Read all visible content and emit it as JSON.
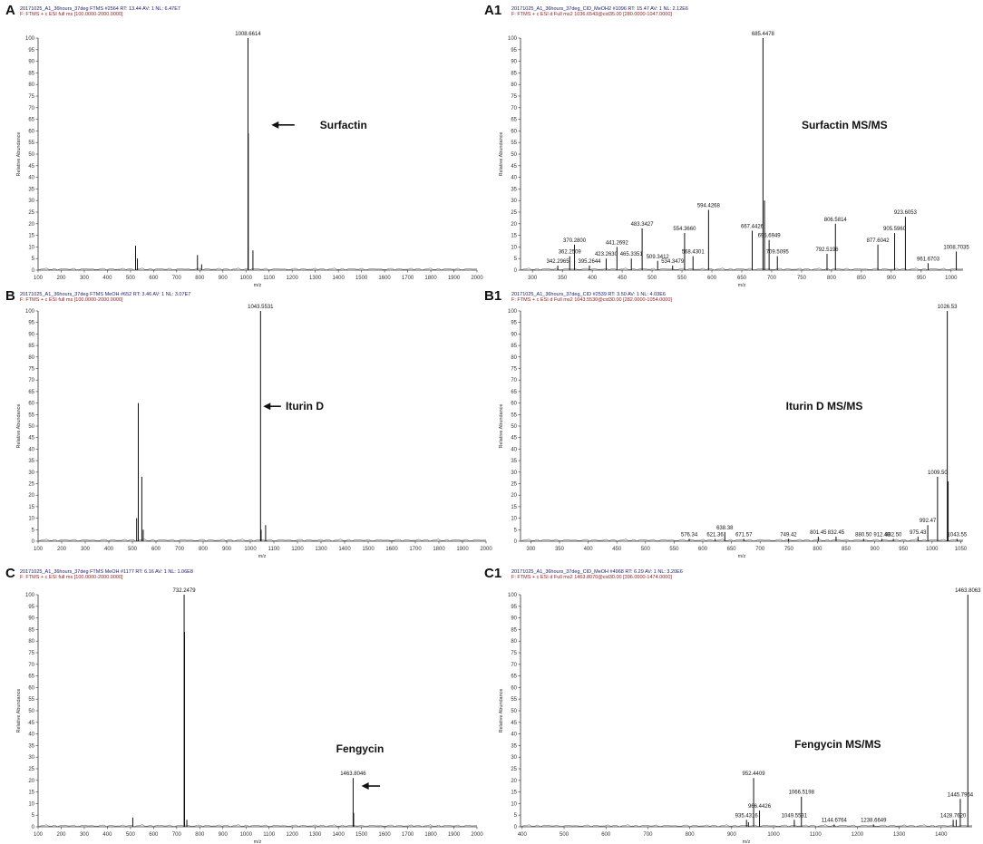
{
  "chart_data": [
    {
      "panel": "A",
      "type": "bar",
      "header_line1": "20171025_A1_36hours_37deg FTMS #2564  RT: 13.44  AV: 1  NL: 6.47E7",
      "header_line2": "F: FTMS + c ESI full ms [100.0000-2000.0000]",
      "xlabel": "m/z",
      "ylabel": "Relative Abundance",
      "xlim": [
        100,
        2000
      ],
      "ylim": [
        0,
        100
      ],
      "xticks": [
        100,
        200,
        300,
        400,
        500,
        600,
        700,
        800,
        900,
        1000,
        1100,
        1200,
        1300,
        1400,
        1500,
        1600,
        1700,
        1800,
        1900,
        2000
      ],
      "yticks": [
        0,
        5,
        10,
        15,
        20,
        25,
        30,
        35,
        40,
        45,
        50,
        55,
        60,
        65,
        70,
        75,
        80,
        85,
        90,
        95,
        100
      ],
      "peaks": [
        {
          "x": 522,
          "y": 10.5,
          "label": ""
        },
        {
          "x": 530,
          "y": 5,
          "label": ""
        },
        {
          "x": 790,
          "y": 6.5,
          "label": ""
        },
        {
          "x": 808,
          "y": 2.5,
          "label": ""
        },
        {
          "x": 1008.6614,
          "y": 100,
          "label": "1008.6614"
        },
        {
          "x": 1010,
          "y": 59,
          "label": ""
        },
        {
          "x": 1030,
          "y": 8.5,
          "label": ""
        }
      ],
      "annotation": {
        "text": "Surfactin",
        "x": 1320,
        "y": 61,
        "arrow_from": 1210,
        "arrow_to": 1110
      }
    },
    {
      "panel": "A1",
      "type": "bar",
      "header_line1": "20171025_A1_36hours_37deg_CID_MeOH2 #1096  RT: 15.47  AV: 1  NL: 2.12E6",
      "header_line2": "F: FTMS + c ESI d Full ms2 1036.6543@cid35.00 [280.0000-1047.0000]",
      "xlabel": "m/z",
      "ylabel": "Relative Abundance",
      "xlim": [
        280,
        1020
      ],
      "ylim": [
        0,
        100
      ],
      "xticks": [
        300,
        350,
        400,
        450,
        500,
        550,
        600,
        650,
        700,
        750,
        800,
        850,
        900,
        950,
        1000
      ],
      "yticks": [
        0,
        5,
        10,
        15,
        20,
        25,
        30,
        35,
        40,
        45,
        50,
        55,
        60,
        65,
        70,
        75,
        80,
        85,
        90,
        95,
        100
      ],
      "peaks": [
        {
          "x": 342.2965,
          "y": 2,
          "label": "342.2965"
        },
        {
          "x": 362.2509,
          "y": 6,
          "label": "362.2509"
        },
        {
          "x": 370.28,
          "y": 11,
          "label": "370.2800"
        },
        {
          "x": 395.2644,
          "y": 2,
          "label": "395.2644"
        },
        {
          "x": 423.263,
          "y": 5,
          "label": "423.2630"
        },
        {
          "x": 441.2692,
          "y": 10,
          "label": "441.2692"
        },
        {
          "x": 465.3351,
          "y": 5,
          "label": "465.3351"
        },
        {
          "x": 483.3427,
          "y": 18,
          "label": "483.3427"
        },
        {
          "x": 509.3412,
          "y": 4,
          "label": "509.3412"
        },
        {
          "x": 534.3479,
          "y": 2,
          "label": "534.3479"
        },
        {
          "x": 554.366,
          "y": 16,
          "label": "554.3660"
        },
        {
          "x": 568.4301,
          "y": 6,
          "label": "568.4301"
        },
        {
          "x": 594.4268,
          "y": 26,
          "label": "594.4268"
        },
        {
          "x": 667.4426,
          "y": 17,
          "label": "667.4426"
        },
        {
          "x": 685.4478,
          "y": 100,
          "label": "685.4478"
        },
        {
          "x": 688,
          "y": 30,
          "label": ""
        },
        {
          "x": 695.6949,
          "y": 13,
          "label": "695.6949"
        },
        {
          "x": 709.5095,
          "y": 6,
          "label": "709.5095"
        },
        {
          "x": 792.5196,
          "y": 7,
          "label": "792.5196"
        },
        {
          "x": 806.5814,
          "y": 20,
          "label": "806.5814"
        },
        {
          "x": 877.6042,
          "y": 11,
          "label": "877.6042"
        },
        {
          "x": 905.596,
          "y": 16,
          "label": "905.5960"
        },
        {
          "x": 923.6053,
          "y": 23,
          "label": "923.6053"
        },
        {
          "x": 961.6703,
          "y": 3,
          "label": "961.6703"
        },
        {
          "x": 1008.7035,
          "y": 8,
          "label": "1008.7035"
        }
      ],
      "annotation": {
        "text": "Surfactin MS/MS",
        "x": 750,
        "y": 61
      }
    },
    {
      "panel": "B",
      "type": "bar",
      "header_line1": "20171025_A1_36hours_37deg FTMS MeOH #652  RT: 3.46  AV: 1  NL: 3.07E7",
      "header_line2": "F: FTMS + c ESI full ms [100.0000-2000.0000]",
      "xlabel": "m/z",
      "ylabel": "Relative Abundance",
      "xlim": [
        100,
        2000
      ],
      "ylim": [
        0,
        100
      ],
      "xticks": [
        100,
        200,
        300,
        400,
        500,
        600,
        700,
        800,
        900,
        1000,
        1100,
        1200,
        1300,
        1400,
        1500,
        1600,
        1700,
        1800,
        1900,
        2000
      ],
      "yticks": [
        0,
        5,
        10,
        15,
        20,
        25,
        30,
        35,
        40,
        45,
        50,
        55,
        60,
        65,
        70,
        75,
        80,
        85,
        90,
        95,
        100
      ],
      "peaks": [
        {
          "x": 518,
          "y": 10,
          "label": ""
        },
        {
          "x": 525,
          "y": 60,
          "label": ""
        },
        {
          "x": 540,
          "y": 28,
          "label": ""
        },
        {
          "x": 546,
          "y": 5,
          "label": ""
        },
        {
          "x": 1043.5531,
          "y": 100,
          "label": "1043.5531"
        },
        {
          "x": 1046,
          "y": 5,
          "label": ""
        },
        {
          "x": 1065,
          "y": 7,
          "label": ""
        }
      ],
      "annotation": {
        "text": "Iturin D",
        "x": 1150,
        "y": 57,
        "arrow_from": 1130,
        "arrow_to": 1055
      }
    },
    {
      "panel": "B1",
      "type": "bar",
      "header_line1": "20171025_A1_36hours_37deg_CID #2539  RT: 3.50  AV: 1  NL: 4.03E6",
      "header_line2": "F: FTMS + c ESI d Full ms2 1043.5530@cid30.00 [282.0000-1054.0000]",
      "xlabel": "m/z",
      "ylabel": "Relative Abundance",
      "xlim": [
        282,
        1054
      ],
      "ylim": [
        0,
        100
      ],
      "xticks": [
        300,
        350,
        400,
        450,
        500,
        550,
        600,
        650,
        700,
        750,
        800,
        850,
        900,
        950,
        1000,
        1050
      ],
      "yticks": [
        0,
        5,
        10,
        15,
        20,
        25,
        30,
        35,
        40,
        45,
        50,
        55,
        60,
        65,
        70,
        75,
        80,
        85,
        90,
        95,
        100
      ],
      "peaks": [
        {
          "x": 576.34,
          "y": 1,
          "label": "576.34"
        },
        {
          "x": 621.36,
          "y": 1,
          "label": "621.36"
        },
        {
          "x": 638.38,
          "y": 4,
          "label": "638.38"
        },
        {
          "x": 671.57,
          "y": 1,
          "label": "671.57"
        },
        {
          "x": 749.42,
          "y": 1,
          "label": "749.42"
        },
        {
          "x": 801.45,
          "y": 2,
          "label": "801.45"
        },
        {
          "x": 832.45,
          "y": 2,
          "label": "832.45"
        },
        {
          "x": 880.5,
          "y": 1,
          "label": "880.50"
        },
        {
          "x": 912.48,
          "y": 1,
          "label": "912.48"
        },
        {
          "x": 932.5,
          "y": 1,
          "label": "932.50"
        },
        {
          "x": 975.43,
          "y": 2,
          "label": "975.43"
        },
        {
          "x": 992.47,
          "y": 7,
          "label": "992.47"
        },
        {
          "x": 1009.5,
          "y": 28,
          "label": "1009.50"
        },
        {
          "x": 1026.53,
          "y": 100,
          "label": "1026.53"
        },
        {
          "x": 1028,
          "y": 26,
          "label": ""
        },
        {
          "x": 1043.55,
          "y": 1,
          "label": "1043.55"
        }
      ],
      "annotation": {
        "text": "Iturin D MS/MS",
        "x": 745,
        "y": 57
      }
    },
    {
      "panel": "C",
      "type": "bar",
      "header_line1": "20171025_A1_36hours_37deg FTMS MeOH #1177  RT: 6.16  AV: 1  NL: 1.06E8",
      "header_line2": "F: FTMS + c ESI full ms [100.0000-2000.0000]",
      "xlabel": "m/z",
      "ylabel": "Relative Abundance",
      "xlim": [
        100,
        2000
      ],
      "ylim": [
        0,
        100
      ],
      "xticks": [
        100,
        200,
        300,
        400,
        500,
        600,
        700,
        800,
        900,
        1000,
        1100,
        1200,
        1300,
        1400,
        1500,
        1600,
        1700,
        1800,
        1900,
        2000
      ],
      "yticks": [
        0,
        5,
        10,
        15,
        20,
        25,
        30,
        35,
        40,
        45,
        50,
        55,
        60,
        65,
        70,
        75,
        80,
        85,
        90,
        95,
        100
      ],
      "peaks": [
        {
          "x": 510,
          "y": 4,
          "label": ""
        },
        {
          "x": 732.2479,
          "y": 100,
          "label": "732.2479"
        },
        {
          "x": 734,
          "y": 84,
          "label": ""
        },
        {
          "x": 744,
          "y": 3,
          "label": ""
        },
        {
          "x": 1463.8046,
          "y": 21,
          "label": "1463.8046"
        },
        {
          "x": 1466,
          "y": 6,
          "label": ""
        }
      ],
      "annotation": {
        "text": "Fengycin",
        "x": 1390,
        "y": 32,
        "arrow_from": 1580,
        "arrow_to": 1500,
        "arrow_y": 16
      }
    },
    {
      "panel": "C1",
      "type": "bar",
      "header_line1": "20171025_A1_36hours_37deg_CID_MeOH #4968  RT: 6.29  AV: 1  NL: 3.20E6",
      "header_line2": "F: FTMS + c ESI d Full ms2 1463.8070@cid30.00 [396.0000-1474.0000]",
      "xlabel": "m/z",
      "ylabel": "Relative Abundance",
      "xlim": [
        396,
        1474
      ],
      "ylim": [
        0,
        100
      ],
      "xticks": [
        400,
        500,
        600,
        700,
        800,
        900,
        1000,
        1100,
        1200,
        1300,
        1400
      ],
      "yticks": [
        0,
        5,
        10,
        15,
        20,
        25,
        30,
        35,
        40,
        45,
        50,
        55,
        60,
        65,
        70,
        75,
        80,
        85,
        90,
        95,
        100
      ],
      "peaks": [
        {
          "x": 935.4316,
          "y": 3,
          "label": "935.4316"
        },
        {
          "x": 940,
          "y": 2,
          "label": ""
        },
        {
          "x": 952.4409,
          "y": 21,
          "label": "952.4409"
        },
        {
          "x": 966.4426,
          "y": 7,
          "label": "966.4426"
        },
        {
          "x": 1049.5531,
          "y": 3,
          "label": "1049.5531"
        },
        {
          "x": 1066.5198,
          "y": 13,
          "label": "1066.5198"
        },
        {
          "x": 1144.6764,
          "y": 1,
          "label": "1144.6764"
        },
        {
          "x": 1238.6649,
          "y": 1,
          "label": "1238.6649"
        },
        {
          "x": 1428.762,
          "y": 3,
          "label": "1428.7620"
        },
        {
          "x": 1436,
          "y": 3,
          "label": ""
        },
        {
          "x": 1445.7964,
          "y": 12,
          "label": "1445.7964"
        },
        {
          "x": 1463.8063,
          "y": 100,
          "label": "1463.8063"
        }
      ],
      "annotation": {
        "text": "Fengycin MS/MS",
        "x": 1050,
        "y": 34
      }
    }
  ]
}
